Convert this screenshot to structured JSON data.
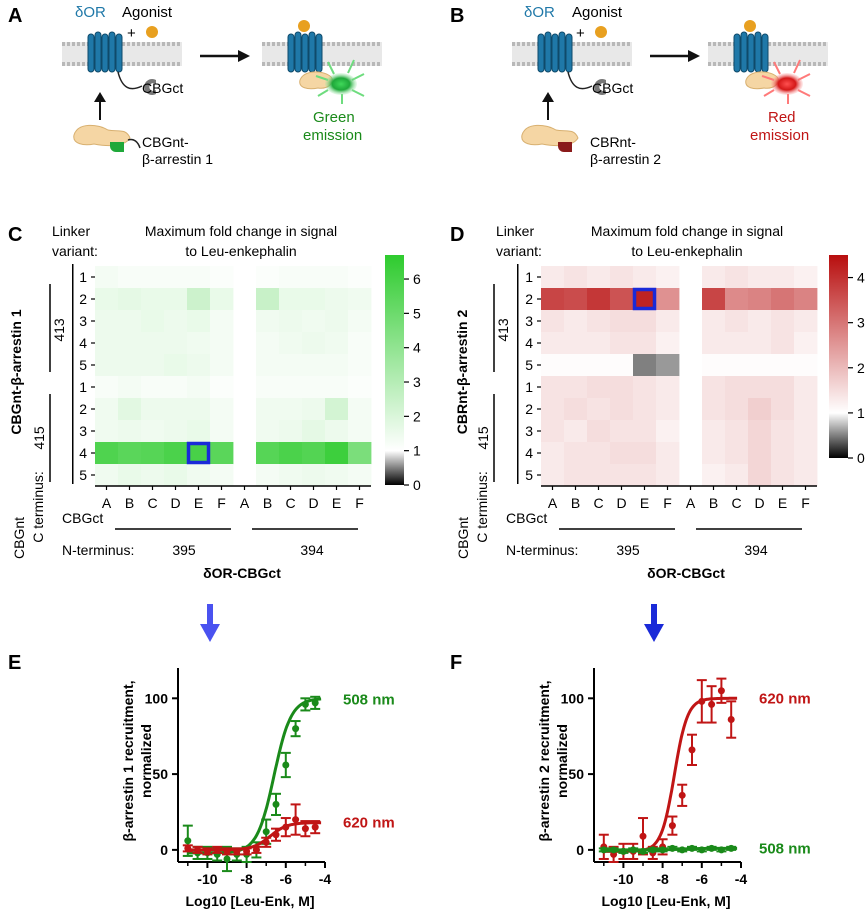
{
  "panels": {
    "A": {
      "letter": "A",
      "receptor": "δOR",
      "agonist": "Agonist",
      "plus": "+",
      "cbgct": "CBGct",
      "donor_line1": "CBGnt-",
      "donor_line2": "β-arrestin 1",
      "emission_line1": "Green",
      "emission_line2": "emission"
    },
    "B": {
      "letter": "B",
      "receptor": "δOR",
      "agonist": "Agonist",
      "plus": "+",
      "cbgct": "CBGct",
      "donor_line1": "CBRnt-",
      "donor_line2": "β-arrestin 2",
      "emission_line1": "Red",
      "emission_line2": "emission"
    },
    "C": {
      "letter": "C"
    },
    "D": {
      "letter": "D"
    },
    "E": {
      "letter": "E"
    },
    "F": {
      "letter": "F"
    }
  },
  "colors": {
    "green": "#1a8a1a",
    "red": "#c01515",
    "blue_arrow": "#3344ee",
    "receptor_blue": "#1f78a8",
    "agonist_orange": "#e8a020",
    "highlight_box": "#1a2ad8"
  },
  "chart_data": [
    {
      "type": "heatmap",
      "panel": "C",
      "title_line1": "Maximum fold change in signal",
      "title_line2": "to Leu-enkephalin",
      "linker_label_line1": "Linker",
      "linker_label_line2": "variant:",
      "ylabel": "CBGnt-β-arrestin 1",
      "y_groups": [
        "413",
        "415"
      ],
      "y_terminus_label_line1": "CBGnt",
      "y_terminus_label_line2": "C terminus:",
      "row_labels": [
        "1",
        "2",
        "3",
        "4",
        "5",
        "1",
        "2",
        "3",
        "4",
        "5"
      ],
      "col_labels": [
        "A",
        "B",
        "C",
        "D",
        "E",
        "F",
        "A",
        "B",
        "C",
        "D",
        "E",
        "F"
      ],
      "x_groups": [
        "395",
        "394"
      ],
      "x_terminus_label_line1": "CBGct",
      "x_terminus_label_line2": "N-terminus:",
      "xlabel": "δOR-CBGct",
      "colorbar": {
        "min": 0,
        "max": 6.7,
        "ticks": [
          0,
          1,
          2,
          3,
          4,
          5,
          6
        ],
        "scale": "black-white-green"
      },
      "highlight": {
        "row": 8,
        "col": 4
      },
      "values": [
        [
          1.3,
          1.2,
          1.2,
          1.2,
          1.2,
          1.1,
          null,
          1.1,
          1.2,
          1.2,
          1.2,
          1.1
        ],
        [
          1.6,
          1.7,
          1.6,
          1.6,
          2.4,
          1.6,
          null,
          2.5,
          1.6,
          1.6,
          1.5,
          1.4
        ],
        [
          1.5,
          1.5,
          1.6,
          1.5,
          1.6,
          1.3,
          null,
          1.4,
          1.5,
          1.4,
          1.5,
          1.3
        ],
        [
          1.5,
          1.5,
          1.5,
          1.5,
          1.4,
          1.3,
          null,
          1.3,
          1.4,
          1.5,
          1.4,
          1.2
        ],
        [
          1.5,
          1.5,
          1.5,
          1.6,
          1.5,
          1.3,
          null,
          1.3,
          1.3,
          1.3,
          1.3,
          1.2
        ],
        [
          1.2,
          1.3,
          1.2,
          1.2,
          1.3,
          1.1,
          null,
          1.2,
          1.2,
          1.2,
          1.2,
          1.1
        ],
        [
          1.4,
          1.8,
          1.5,
          1.5,
          1.5,
          1.3,
          null,
          1.4,
          1.4,
          1.5,
          2.2,
          1.3
        ],
        [
          1.4,
          1.5,
          1.4,
          1.5,
          1.6,
          1.3,
          null,
          1.4,
          1.5,
          1.7,
          1.5,
          1.3
        ],
        [
          5.8,
          5.5,
          5.6,
          5.9,
          6.0,
          5.5,
          null,
          5.6,
          5.9,
          5.7,
          6.3,
          4.6
        ],
        [
          1.4,
          1.6,
          1.5,
          1.6,
          1.4,
          1.3,
          null,
          1.3,
          1.4,
          1.5,
          1.4,
          1.3
        ]
      ]
    },
    {
      "type": "heatmap",
      "panel": "D",
      "title_line1": "Maximum fold change in signal",
      "title_line2": "to Leu-enkephalin",
      "linker_label_line1": "Linker",
      "linker_label_line2": "variant:",
      "ylabel": "CBRnt-β-arrestin 2",
      "y_groups": [
        "413",
        "415"
      ],
      "y_terminus_label_line1": "CBGnt",
      "y_terminus_label_line2": "C terminus:",
      "row_labels": [
        "1",
        "2",
        "3",
        "4",
        "5",
        "1",
        "2",
        "3",
        "4",
        "5"
      ],
      "col_labels": [
        "A",
        "B",
        "C",
        "D",
        "E",
        "F",
        "A",
        "B",
        "C",
        "D",
        "E",
        "F"
      ],
      "x_groups": [
        "395",
        "394"
      ],
      "x_terminus_label_line1": "CBGct",
      "x_terminus_label_line2": "N-terminus:",
      "xlabel": "δOR-CBGct",
      "colorbar": {
        "min": 0,
        "max": 4.5,
        "ticks": [
          0,
          1,
          2,
          3,
          4
        ],
        "scale": "black-white-red"
      },
      "highlight": {
        "row": 1,
        "col": 4
      },
      "values": [
        [
          1.3,
          1.4,
          1.3,
          1.4,
          1.3,
          1.2,
          null,
          1.3,
          1.4,
          1.3,
          1.3,
          1.2
        ],
        [
          3.7,
          3.6,
          3.9,
          3.5,
          4.2,
          2.6,
          null,
          3.7,
          2.7,
          2.8,
          3.0,
          2.8
        ],
        [
          1.4,
          1.3,
          1.4,
          1.5,
          1.5,
          1.3,
          null,
          1.3,
          1.4,
          1.3,
          1.4,
          1.3
        ],
        [
          1.3,
          1.3,
          1.3,
          1.4,
          1.4,
          1.2,
          null,
          1.3,
          1.3,
          1.3,
          1.4,
          1.2
        ],
        [
          1.05,
          1.05,
          1.05,
          1.05,
          0.5,
          0.6,
          null,
          1.05,
          1.05,
          1.05,
          1.05,
          1.05
        ],
        [
          1.4,
          1.4,
          1.5,
          1.5,
          1.4,
          1.3,
          null,
          1.4,
          1.5,
          1.5,
          1.5,
          1.3
        ],
        [
          1.4,
          1.5,
          1.4,
          1.5,
          1.4,
          1.3,
          null,
          1.4,
          1.5,
          1.7,
          1.5,
          1.3
        ],
        [
          1.4,
          1.3,
          1.5,
          1.4,
          1.4,
          1.2,
          null,
          1.3,
          1.4,
          1.6,
          1.4,
          1.3
        ],
        [
          1.3,
          1.4,
          1.4,
          1.5,
          1.5,
          1.3,
          null,
          1.3,
          1.4,
          1.6,
          1.4,
          1.3
        ],
        [
          1.3,
          1.4,
          1.4,
          1.4,
          1.4,
          1.3,
          null,
          1.2,
          1.3,
          1.6,
          1.4,
          1.3
        ]
      ]
    },
    {
      "type": "line",
      "panel": "E",
      "xlabel": "Log10 [Leu-Enk, M]",
      "ylabel_line1": "β-arrestin 1 recruitment,",
      "ylabel_line2": "normalized",
      "xlim": [
        -11.5,
        -4
      ],
      "ylim": [
        -8,
        120
      ],
      "xticks": [
        -10,
        -8,
        -6,
        -4
      ],
      "xtick_labels": [
        "-10",
        "-8",
        "-6",
        "-4"
      ],
      "yticks": [
        0,
        50,
        100
      ],
      "ytick_labels": [
        "0",
        "50",
        "100"
      ],
      "series": [
        {
          "name": "508 nm",
          "color": "#1a8a1a",
          "ec50": -6.6,
          "top": 100,
          "bottom": -2,
          "hill": 1,
          "x": [
            -11,
            -10.5,
            -10,
            -9.5,
            -9,
            -8.5,
            -8,
            -7.5,
            -7,
            -6.5,
            -6,
            -5.5,
            -5,
            -4.5
          ],
          "y": [
            6,
            -2,
            -2,
            -3,
            -6,
            -3,
            -3,
            0,
            12,
            30,
            56,
            80,
            96,
            97
          ],
          "err": [
            10,
            4,
            4,
            4,
            8,
            4,
            5,
            5,
            8,
            7,
            8,
            5,
            4,
            4
          ]
        },
        {
          "name": "620 nm",
          "color": "#c01515",
          "ec50": -6.8,
          "top": 18,
          "bottom": 0,
          "hill": 1,
          "x": [
            -11,
            -10.5,
            -10,
            -9.5,
            -9,
            -8.5,
            -8,
            -7.5,
            -7,
            -6.5,
            -6,
            -5.5,
            -5,
            -4.5
          ],
          "y": [
            1,
            0,
            -1,
            0,
            -1,
            -1,
            -1,
            0,
            5,
            10,
            15,
            20,
            14,
            15
          ],
          "err": [
            2,
            2,
            2,
            2,
            2,
            2,
            2,
            2,
            3,
            4,
            6,
            10,
            5,
            4
          ]
        }
      ]
    },
    {
      "type": "line",
      "panel": "F",
      "xlabel": "Log10 [Leu-Enk, M]",
      "ylabel_line1": "β-arrestin 2 recruitment,",
      "ylabel_line2": "normalized",
      "xlim": [
        -11.5,
        -4
      ],
      "ylim": [
        -8,
        120
      ],
      "xticks": [
        -10,
        -8,
        -6,
        -4
      ],
      "xtick_labels": [
        "-10",
        "-8",
        "-6",
        "-4"
      ],
      "yticks": [
        0,
        50,
        100
      ],
      "ytick_labels": [
        "0",
        "50",
        "100"
      ],
      "series": [
        {
          "name": "620 nm",
          "color": "#c01515",
          "ec50": -7.4,
          "top": 100,
          "bottom": -1,
          "hill": 1.3,
          "x": [
            -11,
            -10.5,
            -10,
            -9.5,
            -9,
            -8.5,
            -8,
            -7.5,
            -7,
            -6.5,
            -6,
            -5.5,
            -5,
            -4.5
          ],
          "y": [
            2,
            -3,
            -1,
            -1,
            9,
            -2,
            2,
            16,
            36,
            66,
            98,
            96,
            105,
            86
          ],
          "err": [
            8,
            5,
            5,
            5,
            12,
            4,
            5,
            6,
            7,
            10,
            14,
            12,
            8,
            12
          ]
        },
        {
          "name": "508 nm",
          "color": "#1a8a1a",
          "ec50": -7,
          "top": 1,
          "bottom": 0,
          "hill": 1,
          "x": [
            -11,
            -10.5,
            -10,
            -9.5,
            -9,
            -8.5,
            -8,
            -7.5,
            -7,
            -6.5,
            -6,
            -5.5,
            -5,
            -4.5
          ],
          "y": [
            0,
            0,
            -1,
            0,
            -1,
            0,
            0,
            1,
            0,
            1,
            0,
            1,
            0,
            1
          ],
          "err": [
            1,
            1,
            1,
            1,
            1,
            1,
            1,
            1,
            1,
            1,
            1,
            1,
            1,
            1
          ]
        }
      ]
    }
  ]
}
